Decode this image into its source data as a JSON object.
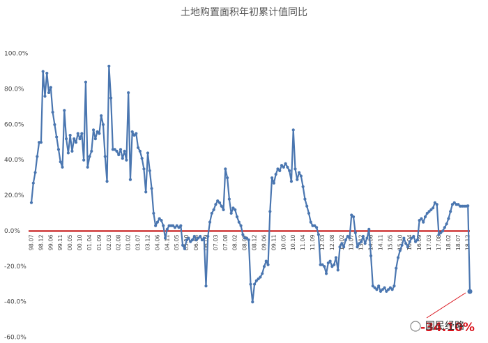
{
  "chart_data": {
    "type": "line",
    "title": "土地购置面积年初累计值同比",
    "categories": [
      "98.07",
      null,
      null,
      null,
      null,
      "98.12",
      null,
      null,
      null,
      null,
      "99.06",
      null,
      null,
      null,
      null,
      "99.11",
      null,
      null,
      null,
      null,
      "00.05",
      null,
      null,
      null,
      null,
      "00.10",
      null,
      null,
      null,
      null,
      "01.04",
      null,
      null,
      null,
      null,
      "01.09",
      null,
      null,
      null,
      null,
      "02.03",
      null,
      null,
      null,
      null,
      "02.08",
      null,
      null,
      null,
      null,
      "03.02",
      null,
      null,
      null,
      null,
      "03.07",
      null,
      null,
      null,
      null,
      "03.12",
      null,
      null,
      null,
      null,
      "04.06",
      null,
      null,
      null,
      null,
      "04.11",
      null,
      null,
      null,
      null,
      "05.05",
      null,
      null,
      null,
      null,
      "05.10",
      null,
      null,
      null,
      null,
      "06.04",
      null,
      null,
      null,
      null,
      "06.09",
      null,
      null,
      null,
      null,
      "07.03",
      null,
      null,
      null,
      null,
      "07.08",
      null,
      null,
      null,
      null,
      "08.02",
      null,
      null,
      null,
      null,
      "08.07",
      null,
      null,
      null,
      null,
      "08.12",
      null,
      null,
      null,
      null,
      "09.06",
      null,
      null,
      null,
      null,
      "09.11",
      null,
      null,
      null,
      null,
      "10.05",
      null,
      null,
      null,
      null,
      "10.10",
      null,
      null,
      null,
      null,
      "11.04",
      null,
      null,
      null,
      null,
      "11.09",
      null,
      null,
      null,
      null,
      "12.03",
      null,
      null,
      null,
      null,
      "12.08",
      null,
      null,
      null,
      null,
      "13.02",
      null,
      null,
      null,
      null,
      "13.07",
      null,
      null,
      null,
      null,
      "13.12",
      null,
      null,
      null,
      null,
      "14.06",
      null,
      null,
      null,
      null,
      "14.11",
      null,
      null,
      null,
      null,
      "15.05",
      null,
      null,
      null,
      null,
      "15.10",
      null,
      null,
      null,
      null,
      "16.04",
      null,
      null,
      null,
      null,
      "16.09",
      null,
      null,
      null,
      null,
      "17.03",
      null,
      null,
      null,
      null,
      "17.08",
      null,
      null,
      null,
      null,
      "18.02",
      null,
      null,
      null,
      null,
      "18.07",
      null,
      null,
      null,
      null,
      "18.12",
      null
    ],
    "series": [
      {
        "color": "#4a76b0",
        "values": [
          16,
          27,
          33,
          42,
          50,
          50,
          90,
          76,
          89,
          78,
          81,
          67,
          60,
          53,
          46,
          39,
          36,
          68,
          52,
          44,
          54,
          45,
          52,
          50,
          55,
          52,
          55,
          40,
          84,
          36,
          42,
          45,
          57,
          52,
          56,
          55,
          65,
          60,
          42,
          28,
          93,
          75,
          46,
          46,
          45,
          43,
          46,
          41,
          45,
          40,
          78,
          29,
          56,
          54,
          55,
          47,
          45,
          41,
          35,
          22,
          44,
          34,
          24,
          10,
          3,
          5,
          7,
          6,
          3,
          -4,
          1,
          3,
          3,
          3,
          2,
          3,
          2,
          3,
          -8,
          -10,
          -5,
          -4,
          -6,
          -5,
          -3,
          -5,
          -4,
          -3,
          -5,
          -4,
          -31,
          -3,
          5,
          10,
          12,
          15,
          17,
          16,
          14,
          12,
          35,
          30,
          18,
          10,
          13,
          12,
          8,
          5,
          3,
          -2,
          -4,
          -4,
          -5,
          -30,
          -40,
          -30,
          -28,
          -27,
          -26,
          -24,
          -20,
          -17,
          -19,
          11,
          30,
          27,
          32,
          35,
          34,
          37,
          36,
          38,
          36,
          34,
          28,
          57,
          35,
          29,
          33,
          31,
          25,
          18,
          14,
          10,
          5,
          3,
          3,
          2,
          -2,
          -19,
          -19,
          -20,
          -24,
          -18,
          -17,
          -20,
          -19,
          -15,
          -22,
          -9,
          -7,
          -9,
          -5,
          -3,
          -4,
          9,
          8,
          -1,
          -9,
          -7,
          -6,
          -3,
          -7,
          -4,
          1,
          -14,
          -31,
          -32,
          -33,
          -31,
          -34,
          -33,
          -32,
          -34,
          -33,
          -32,
          -33,
          -31,
          -21,
          -15,
          -11,
          -8,
          -4,
          -7,
          -9,
          -6,
          -4,
          -3,
          -6,
          -5,
          6,
          7,
          5,
          8,
          10,
          11,
          12,
          13,
          16,
          15,
          -2,
          -1,
          0,
          2,
          4,
          7,
          11,
          15,
          16,
          15,
          15,
          14,
          14,
          14,
          14,
          14.2,
          -34.1
        ]
      }
    ],
    "ylim": [
      -60,
      100
    ],
    "yticks": [
      {
        "value": -60,
        "label": "-60.0%"
      },
      {
        "value": -40,
        "label": "-40.0%"
      },
      {
        "value": -20,
        "label": "-20.0%"
      },
      {
        "value": 0,
        "label": "0.0%"
      },
      {
        "value": 20,
        "label": "20.0%"
      },
      {
        "value": 40,
        "label": "40.0%"
      },
      {
        "value": 60,
        "label": "60.0%"
      },
      {
        "value": 80,
        "label": "80.0%"
      },
      {
        "value": 100,
        "label": "100.0%"
      }
    ],
    "grid": false,
    "zero_line_color": "#c00000",
    "annotation": "-34.10%",
    "annotation_color": "#d9121b",
    "watermark": "国民经略"
  }
}
